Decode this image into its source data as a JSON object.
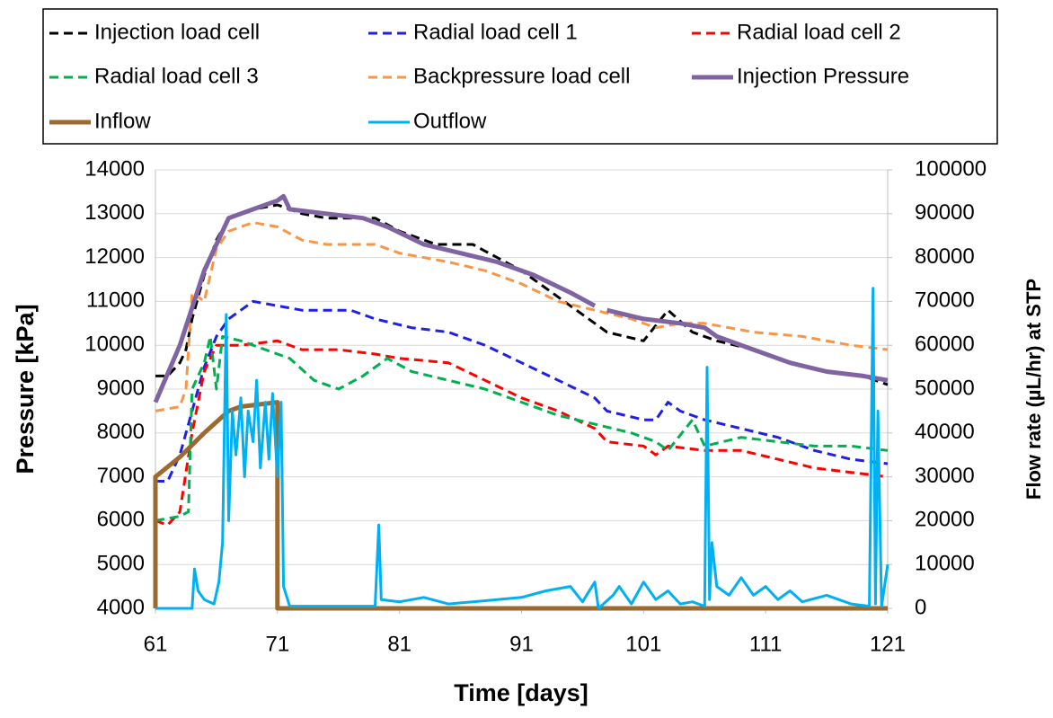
{
  "chart_data": {
    "type": "line",
    "x_label": "Time [days]",
    "y_label": "Pressure [kPa]",
    "y2_label": "Flow rate (µL/hr) at STP",
    "xlim": [
      61,
      121
    ],
    "xticks": [
      61,
      71,
      81,
      91,
      101,
      111,
      121
    ],
    "ylim": [
      4000,
      14000
    ],
    "yticks": [
      4000,
      5000,
      6000,
      7000,
      8000,
      9000,
      10000,
      11000,
      12000,
      13000,
      14000
    ],
    "y2lim": [
      0,
      100000
    ],
    "y2ticks": [
      0,
      10000,
      20000,
      30000,
      40000,
      50000,
      60000,
      70000,
      80000,
      90000,
      100000
    ],
    "grid": true,
    "legend": "top",
    "series": [
      {
        "name": "Injection load cell",
        "color": "#000000",
        "style": "dashed",
        "width": 3,
        "x": [
          61,
          62,
          63,
          63.5,
          64,
          65,
          66,
          67,
          69,
          71,
          73,
          75,
          77,
          79,
          81,
          84,
          87,
          89,
          91,
          93,
          95,
          97,
          98,
          101,
          103,
          105,
          107,
          110,
          113,
          116,
          119,
          121
        ],
        "values": [
          9300,
          9300,
          9600,
          9900,
          10600,
          11600,
          12400,
          12900,
          13100,
          13200,
          13000,
          12900,
          12900,
          12900,
          12600,
          12300,
          12300,
          12000,
          11700,
          11300,
          10900,
          10500,
          10300,
          10100,
          10800,
          10300,
          10100,
          9900,
          9600,
          9400,
          9300,
          9100
        ]
      },
      {
        "name": "Radial load cell 1",
        "color": "#1f1fe6",
        "style": "dashed",
        "width": 3,
        "x": [
          61,
          62,
          63,
          64,
          65,
          66,
          67,
          69,
          71,
          73,
          75,
          77,
          79,
          82,
          85,
          88,
          91,
          94,
          97,
          98,
          101,
          102,
          103,
          104,
          106,
          109,
          112,
          115,
          118,
          121
        ],
        "values": [
          6900,
          6900,
          7500,
          8500,
          9500,
          10200,
          10600,
          11000,
          10900,
          10800,
          10800,
          10800,
          10600,
          10400,
          10300,
          10000,
          9600,
          9200,
          8800,
          8500,
          8300,
          8300,
          8700,
          8500,
          8300,
          8100,
          7900,
          7600,
          7400,
          7300
        ]
      },
      {
        "name": "Radial load cell 2",
        "color": "#ff0000",
        "style": "dashed",
        "width": 3,
        "x": [
          61,
          62,
          63,
          64,
          65,
          66,
          68,
          71,
          73,
          76,
          79,
          81,
          85,
          88,
          91,
          94,
          97,
          98,
          101,
          102,
          103,
          106,
          109,
          112,
          115,
          118,
          121
        ],
        "values": [
          6000,
          5900,
          6200,
          8000,
          9400,
          10000,
          10000,
          10100,
          9900,
          9900,
          9800,
          9700,
          9600,
          9200,
          8800,
          8500,
          8100,
          7800,
          7700,
          7500,
          7700,
          7600,
          7600,
          7400,
          7200,
          7100,
          7000
        ]
      },
      {
        "name": "Radial load cell 3",
        "color": "#00b050",
        "style": "dashed",
        "width": 3,
        "x": [
          61,
          63,
          63.7,
          64,
          65,
          65.5,
          66,
          66.5,
          68,
          70,
          72,
          74,
          76,
          78,
          80,
          82,
          85,
          88,
          91,
          94,
          97,
          100,
          102,
          103,
          105,
          106,
          109,
          112,
          115,
          118,
          121
        ],
        "values": [
          6000,
          6100,
          6200,
          9000,
          9600,
          10200,
          9000,
          10200,
          10100,
          9900,
          9700,
          9200,
          9000,
          9300,
          9700,
          9400,
          9200,
          9000,
          8700,
          8400,
          8200,
          8000,
          7800,
          7600,
          8300,
          7700,
          7900,
          7800,
          7700,
          7700,
          7600
        ]
      },
      {
        "name": "Backpressure load cell",
        "color": "#f79646",
        "style": "dashed",
        "width": 3,
        "x": [
          61,
          63,
          63.5,
          64,
          65,
          66,
          67,
          69,
          71,
          73,
          75,
          77,
          79,
          81,
          85,
          88,
          91,
          94,
          97,
          100,
          102,
          104,
          106,
          110,
          114,
          118,
          121
        ],
        "values": [
          8500,
          8600,
          9000,
          11200,
          11000,
          12200,
          12600,
          12800,
          12700,
          12400,
          12300,
          12300,
          12300,
          12100,
          11900,
          11700,
          11400,
          11000,
          10800,
          10600,
          10400,
          10500,
          10500,
          10300,
          10200,
          10000,
          9900
        ]
      },
      {
        "name": "Injection Pressure",
        "color": "#8064a2",
        "style": "solid",
        "width": 5,
        "x": [
          61,
          63,
          65,
          67,
          69,
          71,
          71.5,
          72,
          75,
          78,
          80,
          83,
          86,
          89,
          92,
          95,
          97,
          97.5,
          98,
          101,
          104,
          106,
          107,
          110,
          113,
          116,
          119,
          121
        ],
        "values": [
          8700,
          10000,
          11700,
          12900,
          13100,
          13300,
          13400,
          13100,
          13000,
          12900,
          12700,
          12300,
          12100,
          11900,
          11600,
          11200,
          10900,
          null,
          10800,
          10600,
          10500,
          10400,
          10200,
          9900,
          9600,
          9400,
          9300,
          9200
        ]
      },
      {
        "name": "Inflow",
        "color": "#9c6a2e",
        "style": "solid",
        "width": 5,
        "axis": "y2",
        "x": [
          61,
          61,
          63,
          65,
          67,
          68,
          71,
          71,
          121
        ],
        "values": [
          0,
          30000,
          34500,
          40000,
          45000,
          46000,
          47000,
          0,
          0
        ]
      },
      {
        "name": "Outflow",
        "color": "#00b0f0",
        "style": "solid",
        "width": 3,
        "axis": "y2",
        "x": [
          61,
          64,
          64.2,
          64.5,
          65,
          65.8,
          66.2,
          66.5,
          66.8,
          67,
          67.3,
          67.6,
          68,
          68.3,
          68.6,
          69,
          69.3,
          69.6,
          70,
          70.3,
          70.6,
          71,
          71.3,
          71.5,
          72,
          79,
          79.3,
          79.5,
          81,
          83,
          85,
          87,
          89,
          91,
          93,
          95,
          96,
          97,
          97.3,
          98.5,
          99,
          100,
          101,
          102,
          103,
          104,
          105,
          106,
          106.2,
          106.4,
          106.6,
          107,
          108,
          109,
          110,
          111,
          112,
          113,
          114,
          116,
          118,
          119.5,
          119.8,
          120,
          120.2,
          120.5,
          121
        ],
        "values": [
          0,
          0,
          9000,
          4000,
          2000,
          1000,
          6000,
          15000,
          67000,
          20000,
          45000,
          35000,
          48000,
          30000,
          45000,
          38000,
          52000,
          32000,
          47000,
          34000,
          49000,
          30000,
          47000,
          5000,
          500,
          500,
          19000,
          2000,
          1500,
          2500,
          1000,
          1500,
          2000,
          2500,
          4000,
          5000,
          1500,
          6000,
          0,
          3000,
          5000,
          1000,
          6000,
          2000,
          4000,
          1000,
          1500,
          500,
          55000,
          2000,
          15000,
          5000,
          3000,
          7000,
          3000,
          5000,
          2000,
          4000,
          1500,
          3000,
          1000,
          500,
          73000,
          1000,
          45000,
          500,
          10000
        ]
      }
    ]
  }
}
